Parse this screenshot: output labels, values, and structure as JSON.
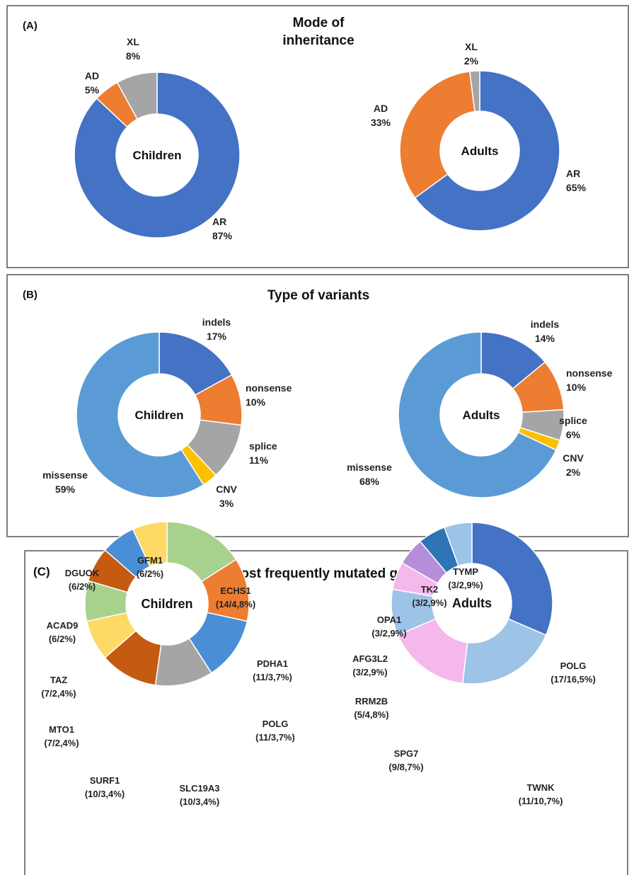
{
  "panels": {
    "a": {
      "tag": "(A)",
      "title_line1": "Mode of",
      "title_line2": "inheritance"
    },
    "b": {
      "tag": "(B)",
      "title": "Type of variants"
    },
    "c": {
      "tag": "(C)",
      "title": "Most frequently mutated genes"
    }
  },
  "chart_data": [
    {
      "id": "a-children",
      "type": "pie",
      "center_label": "Children",
      "series": [
        {
          "name": "AR",
          "value": 87,
          "label": [
            "AR",
            "87%"
          ],
          "color": "#4472C4"
        },
        {
          "name": "AD",
          "value": 5,
          "label": [
            "AD",
            "5%"
          ],
          "color": "#ED7D31"
        },
        {
          "name": "XL",
          "value": 8,
          "label": [
            "XL",
            "8%"
          ],
          "color": "#A5A5A5"
        }
      ]
    },
    {
      "id": "a-adults",
      "type": "pie",
      "center_label": "Adults",
      "series": [
        {
          "name": "AR",
          "value": 65,
          "label": [
            "AR",
            "65%"
          ],
          "color": "#4472C4"
        },
        {
          "name": "AD",
          "value": 33,
          "label": [
            "AD",
            "33%"
          ],
          "color": "#ED7D31"
        },
        {
          "name": "XL",
          "value": 2,
          "label": [
            "XL",
            "2%"
          ],
          "color": "#A5A5A5"
        }
      ]
    },
    {
      "id": "b-children",
      "type": "pie",
      "center_label": "Children",
      "series": [
        {
          "name": "indels",
          "value": 17,
          "label": [
            "indels",
            "17%"
          ],
          "color": "#4472C4"
        },
        {
          "name": "nonsense",
          "value": 10,
          "label": [
            "nonsense",
            "10%"
          ],
          "color": "#ED7D31"
        },
        {
          "name": "splice",
          "value": 11,
          "label": [
            "splice",
            "11%"
          ],
          "color": "#A5A5A5"
        },
        {
          "name": "CNV",
          "value": 3,
          "label": [
            "CNV",
            "3%"
          ],
          "color": "#FFC000"
        },
        {
          "name": "missense",
          "value": 59,
          "label": [
            "missense",
            "59%"
          ],
          "color": "#5B9BD5"
        }
      ]
    },
    {
      "id": "b-adults",
      "type": "pie",
      "center_label": "Adults",
      "series": [
        {
          "name": "indels",
          "value": 14,
          "label": [
            "indels",
            "14%"
          ],
          "color": "#4472C4"
        },
        {
          "name": "nonsense",
          "value": 10,
          "label": [
            "nonsense",
            "10%"
          ],
          "color": "#ED7D31"
        },
        {
          "name": "splice",
          "value": 6,
          "label": [
            "splice",
            "6%"
          ],
          "color": "#A5A5A5"
        },
        {
          "name": "CNV",
          "value": 2,
          "label": [
            "CNV",
            "2%"
          ],
          "color": "#FFC000"
        },
        {
          "name": "missense",
          "value": 68,
          "label": [
            "missense",
            "68%"
          ],
          "color": "#5B9BD5"
        }
      ]
    },
    {
      "id": "c-children",
      "type": "pie",
      "center_label": "Children",
      "series": [
        {
          "name": "ECHS1",
          "value": 14,
          "label": [
            "ECHS1",
            "(14/4,8%)"
          ],
          "color": "#A9D18E"
        },
        {
          "name": "PDHA1",
          "value": 11,
          "label": [
            "PDHA1",
            "(11/3,7%)"
          ],
          "color": "#ED7D31"
        },
        {
          "name": "POLG",
          "value": 11,
          "label": [
            "POLG",
            "(11/3,7%)"
          ],
          "color": "#4A8ED6"
        },
        {
          "name": "SLC19A3",
          "value": 10,
          "label": [
            "SLC19A3",
            "(10/3,4%)"
          ],
          "color": "#A5A5A5"
        },
        {
          "name": "SURF1",
          "value": 10,
          "label": [
            "SURF1",
            "(10/3,4%)"
          ],
          "color": "#C55A11"
        },
        {
          "name": "MTO1",
          "value": 7,
          "label": [
            "MTO1",
            "(7/2,4%)"
          ],
          "color": "#FFD966"
        },
        {
          "name": "TAZ",
          "value": 7,
          "label": [
            "TAZ",
            "(7/2,4%)"
          ],
          "color": "#A9D18E"
        },
        {
          "name": "ACAD9",
          "value": 6,
          "label": [
            "ACAD9",
            "(6/2%)"
          ],
          "color": "#C55A11"
        },
        {
          "name": "DGUOK",
          "value": 6,
          "label": [
            "DGUOK",
            "(6/2%)"
          ],
          "color": "#4A8ED6"
        },
        {
          "name": "GFM1",
          "value": 6,
          "label": [
            "GFM1",
            "(6/2%)"
          ],
          "color": "#FFD966"
        }
      ]
    },
    {
      "id": "c-adults",
      "type": "pie",
      "center_label": "Adults",
      "series": [
        {
          "name": "POLG",
          "value": 17,
          "label": [
            "POLG",
            "(17/16,5%)"
          ],
          "color": "#4472C4"
        },
        {
          "name": "TWNK",
          "value": 11,
          "label": [
            "TWNK",
            "(11/10,7%)"
          ],
          "color": "#9DC3E6"
        },
        {
          "name": "SPG7",
          "value": 9,
          "label": [
            "SPG7",
            "(9/8,7%)"
          ],
          "color": "#F4B8EC"
        },
        {
          "name": "RRM2B",
          "value": 5,
          "label": [
            "RRM2B",
            "(5/4,8%)"
          ],
          "color": "#9DC3E6"
        },
        {
          "name": "AFG3L2",
          "value": 3,
          "label": [
            "AFG3L2",
            "(3/2,9%)"
          ],
          "color": "#F4B8EC"
        },
        {
          "name": "OPA1",
          "value": 3,
          "label": [
            "OPA1",
            "(3/2,9%)"
          ],
          "color": "#B48ED8"
        },
        {
          "name": "TK2",
          "value": 3,
          "label": [
            "TK2",
            "(3/2,9%)"
          ],
          "color": "#2E75B6"
        },
        {
          "name": "TYMP",
          "value": 3,
          "label": [
            "TYMP",
            "(3/2,9%)"
          ],
          "color": "#9DC3E6"
        }
      ]
    }
  ]
}
